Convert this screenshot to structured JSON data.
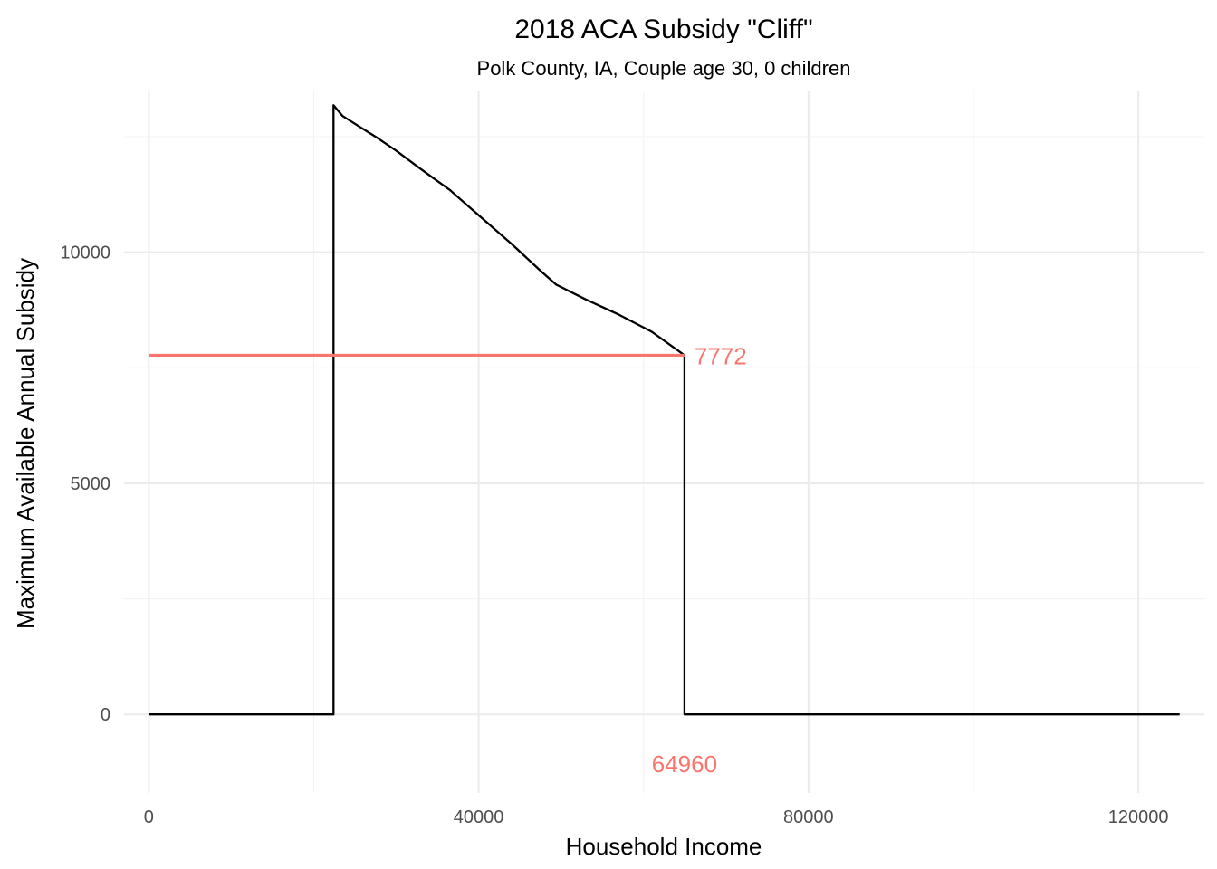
{
  "chart_data": {
    "type": "line",
    "title": "2018 ACA Subsidy \"Cliff\"",
    "subtitle": "Polk County, IA, Couple age 30, 0 children",
    "xlabel": "Household Income",
    "ylabel": "Maximum Available Annual Subsidy",
    "xlim": [
      -3000,
      128000
    ],
    "ylim": [
      -1700,
      13500
    ],
    "x_ticks": [
      0,
      40000,
      80000,
      120000
    ],
    "x_tick_labels": [
      "0",
      "40000",
      "80000",
      "120000"
    ],
    "x_minor": [
      20000,
      60000,
      100000
    ],
    "y_ticks": [
      0,
      5000,
      10000
    ],
    "y_tick_labels": [
      "0",
      "5000",
      "10000"
    ],
    "y_minor": [
      2500,
      7500,
      12500
    ],
    "grid": true,
    "series": [
      {
        "color": "#000000",
        "x": [
          0,
          22400,
          22400,
          23500,
          25000,
          27500,
          30000,
          33000,
          36500,
          40000,
          44000,
          47500,
          49400,
          53000,
          57000,
          61000,
          64960,
          64960,
          70000,
          90000,
          110000,
          125000
        ],
        "y": [
          0,
          0,
          13180,
          12950,
          12780,
          12500,
          12200,
          11800,
          11350,
          10800,
          10180,
          9600,
          9300,
          8980,
          8650,
          8280,
          7772,
          0,
          0,
          0,
          0,
          0
        ]
      }
    ],
    "reference_line": {
      "y": 7772,
      "x_start": 0,
      "x_end": 64960,
      "color": "#f8766d"
    },
    "annotations": [
      {
        "text": "7772",
        "x": 64960,
        "y": 7772,
        "color": "#f8766d"
      },
      {
        "text": "64960",
        "x": 64960,
        "y": -1050,
        "color": "#f8766d"
      }
    ]
  }
}
